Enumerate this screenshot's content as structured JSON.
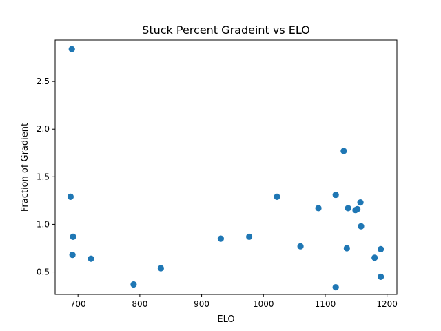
{
  "chart_data": {
    "type": "scatter",
    "title": "Stuck Percent Gradeint vs ELO",
    "xlabel": "ELO",
    "ylabel": "Fraction of Gradient",
    "xlim": [
      663,
      1216
    ],
    "ylim": [
      0.265,
      2.935
    ],
    "xticks": [
      700,
      800,
      900,
      1000,
      1100,
      1200
    ],
    "yticks": [
      0.5,
      1.0,
      1.5,
      2.0,
      2.5
    ],
    "ytick_labels": [
      "0.5",
      "1.0",
      "1.5",
      "2.0",
      "2.5"
    ],
    "grid": false,
    "marker_color": "#1f77b4",
    "points": [
      {
        "x": 690,
        "y": 2.84
      },
      {
        "x": 688,
        "y": 1.29
      },
      {
        "x": 692,
        "y": 0.87
      },
      {
        "x": 691,
        "y": 0.68
      },
      {
        "x": 721,
        "y": 0.64
      },
      {
        "x": 790,
        "y": 0.37
      },
      {
        "x": 834,
        "y": 0.54
      },
      {
        "x": 931,
        "y": 0.85
      },
      {
        "x": 977,
        "y": 0.87
      },
      {
        "x": 1022,
        "y": 1.29
      },
      {
        "x": 1060,
        "y": 0.77
      },
      {
        "x": 1089,
        "y": 1.17
      },
      {
        "x": 1117,
        "y": 1.31
      },
      {
        "x": 1117,
        "y": 0.34
      },
      {
        "x": 1130,
        "y": 1.77
      },
      {
        "x": 1135,
        "y": 0.75
      },
      {
        "x": 1137,
        "y": 1.17
      },
      {
        "x": 1149,
        "y": 1.15
      },
      {
        "x": 1152,
        "y": 1.16
      },
      {
        "x": 1157,
        "y": 1.23
      },
      {
        "x": 1158,
        "y": 0.98
      },
      {
        "x": 1180,
        "y": 0.65
      },
      {
        "x": 1190,
        "y": 0.74
      },
      {
        "x": 1190,
        "y": 0.45
      }
    ]
  }
}
